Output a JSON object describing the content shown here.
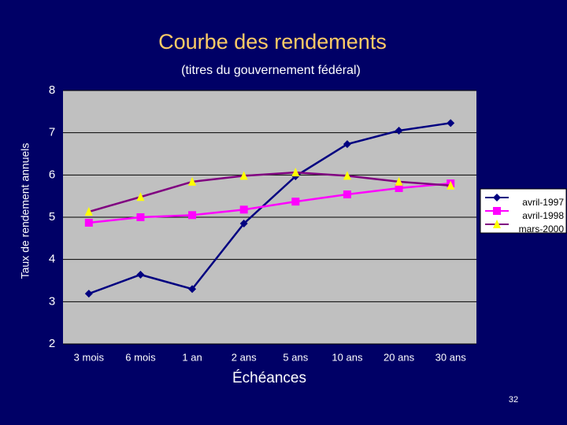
{
  "chart_data": {
    "type": "line",
    "title": "Courbe des rendements",
    "subtitle": "(titres du gouvernement fédéral)",
    "y_label": "Taux de rendement annuels",
    "x_label": "Échéances",
    "categories": [
      "3 mois",
      "6 mois",
      "1 an",
      "2 ans",
      "5 ans",
      "10 ans",
      "20 ans",
      "30 ans"
    ],
    "series": [
      {
        "name": "avril-1997",
        "color": "#000080",
        "marker_color": "#000080",
        "marker": "diamond",
        "values": [
          3.19,
          3.64,
          3.3,
          4.85,
          5.97,
          6.73,
          7.05,
          7.23
        ]
      },
      {
        "name": "avril-1998",
        "color": "#ff00ff",
        "marker_color": "#ff00ff",
        "marker": "square",
        "values": [
          4.87,
          5.0,
          5.05,
          5.18,
          5.37,
          5.54,
          5.69,
          5.8
        ]
      },
      {
        "name": "mars-2000",
        "color": "#800080",
        "marker_color": "#ffff00",
        "marker": "triangle",
        "values": [
          5.13,
          5.48,
          5.84,
          5.98,
          6.06,
          5.98,
          5.84,
          5.75
        ]
      }
    ],
    "ylim": [
      2,
      8
    ],
    "yticks": [
      2,
      3,
      4,
      5,
      6,
      7,
      8
    ],
    "grid": true,
    "legend": "right",
    "page_number": "32"
  }
}
